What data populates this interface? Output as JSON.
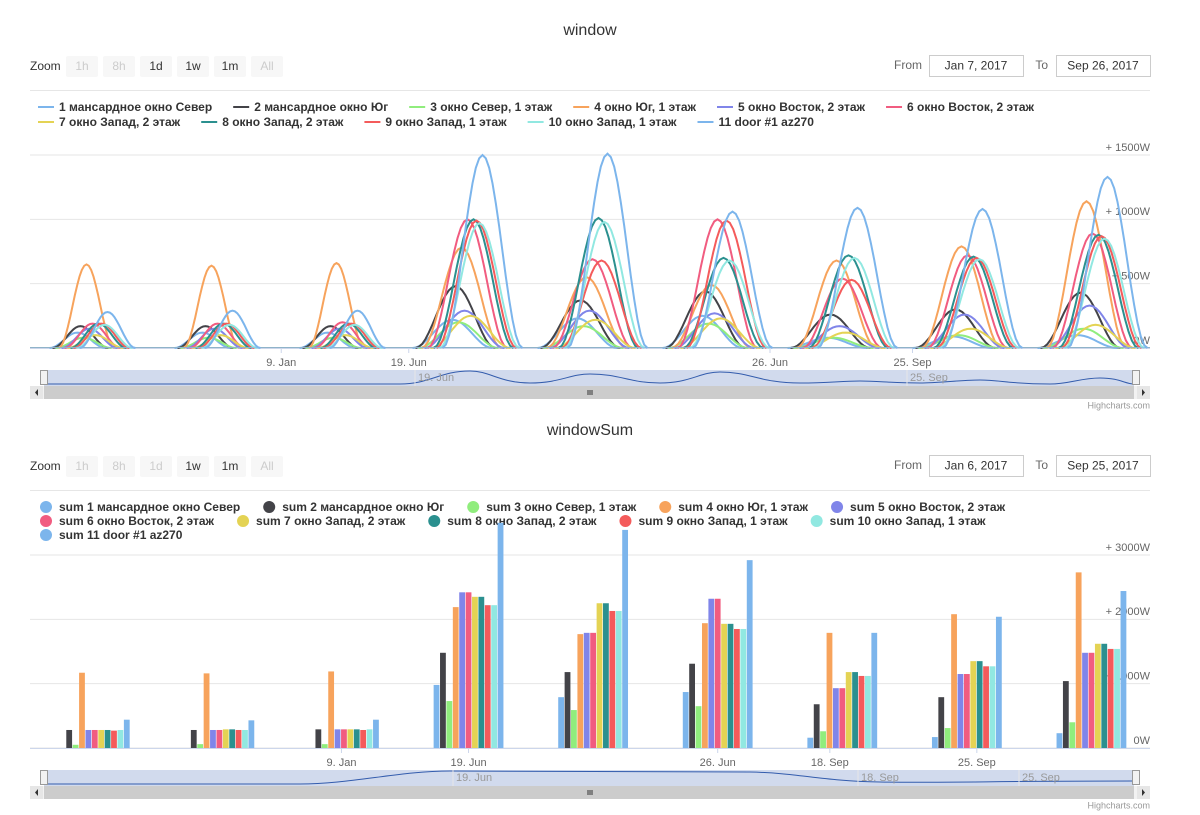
{
  "chart_data": [
    {
      "type": "line",
      "title": "window",
      "zoom_label": "Zoom",
      "range_buttons": [
        {
          "label": "1h",
          "enabled": false
        },
        {
          "label": "8h",
          "enabled": false
        },
        {
          "label": "1d",
          "enabled": true
        },
        {
          "label": "1w",
          "enabled": true
        },
        {
          "label": "1m",
          "enabled": true
        },
        {
          "label": "All",
          "enabled": false
        }
      ],
      "from_label": "From",
      "from": "Jan 7, 2017",
      "to_label": "To",
      "to": "Sep 26, 2017",
      "x": [
        0,
        1,
        2,
        3,
        4,
        5,
        6,
        7,
        8
      ],
      "xlim": [
        -0.5,
        8.46
      ],
      "xticks": [
        {
          "value": 1.51,
          "label": "9. Jan"
        },
        {
          "value": 2.53,
          "label": "19. Jun"
        },
        {
          "value": 5.42,
          "label": "26. Jun"
        },
        {
          "value": 6.56,
          "label": "25. Sep"
        }
      ],
      "ylim": [
        0,
        1500
      ],
      "yticks": [
        {
          "value": 0,
          "label": "0W"
        },
        {
          "value": 500,
          "label": "+ 500W"
        },
        {
          "value": 1000,
          "label": "+ 1000W"
        },
        {
          "value": 1500,
          "label": "+ 1500W"
        }
      ],
      "grid": true,
      "series": [
        {
          "name": "1 мансардное окно Север",
          "color": "#7cb5ec",
          "values": [
            120,
            120,
            120,
            220,
            230,
            250,
            80,
            90,
            100
          ]
        },
        {
          "name": "2 мансардное окно Юг",
          "color": "#434348",
          "values": [
            170,
            170,
            170,
            480,
            370,
            440,
            260,
            300,
            430
          ]
        },
        {
          "name": "3 окно Север, 1 этаж",
          "color": "#90ed7d",
          "values": [
            80,
            80,
            80,
            200,
            170,
            190,
            80,
            100,
            150
          ]
        },
        {
          "name": "4 окно Юг, 1 этаж",
          "color": "#f7a35c",
          "values": [
            650,
            640,
            660,
            780,
            550,
            490,
            680,
            790,
            1140
          ]
        },
        {
          "name": "5 окно Восток, 2 этаж",
          "color": "#8085e9",
          "values": [
            150,
            150,
            150,
            290,
            290,
            270,
            170,
            260,
            330
          ]
        },
        {
          "name": "6 окно Восток, 2 этаж",
          "color": "#f15c80",
          "values": [
            190,
            190,
            200,
            1000,
            690,
            1000,
            540,
            720,
            890
          ]
        },
        {
          "name": "7 окно Запад, 2 этаж",
          "color": "#e4d354",
          "values": [
            100,
            100,
            100,
            250,
            220,
            230,
            120,
            150,
            180
          ]
        },
        {
          "name": "8 окно Запад, 2 этаж",
          "color": "#2b908f",
          "values": [
            190,
            190,
            190,
            1000,
            1010,
            700,
            720,
            710,
            880
          ]
        },
        {
          "name": "9 окно Запад, 1 этаж",
          "color": "#f45b5b",
          "values": [
            190,
            190,
            190,
            990,
            680,
            990,
            530,
            700,
            870
          ]
        },
        {
          "name": "10 окно Запад, 1 этаж",
          "color": "#91e8e1",
          "values": [
            180,
            180,
            180,
            970,
            980,
            680,
            700,
            690,
            850
          ]
        },
        {
          "name": "11 door #1 az270",
          "color": "#7cb5ec",
          "values": [
            280,
            290,
            290,
            1500,
            1510,
            1060,
            1090,
            1080,
            1330
          ]
        }
      ],
      "navigator_labels": [
        "19. Jun",
        "25. Sep"
      ],
      "credits": "Highcharts.com"
    },
    {
      "type": "bar",
      "title": "windowSum",
      "zoom_label": "Zoom",
      "range_buttons": [
        {
          "label": "1h",
          "enabled": false
        },
        {
          "label": "8h",
          "enabled": false
        },
        {
          "label": "1d",
          "enabled": false
        },
        {
          "label": "1w",
          "enabled": true
        },
        {
          "label": "1m",
          "enabled": true
        },
        {
          "label": "All",
          "enabled": false
        }
      ],
      "from_label": "From",
      "from": "Jan 6, 2017",
      "to_label": "To",
      "to": "Sep 25, 2017",
      "x": [
        0,
        1,
        2,
        3,
        4,
        5,
        6,
        7,
        8
      ],
      "xlim": [
        -0.52,
        8.47
      ],
      "xticks": [
        {
          "value": 1.98,
          "label": "9. Jan"
        },
        {
          "value": 3.0,
          "label": "19. Jun"
        },
        {
          "value": 5.0,
          "label": "26. Jun"
        },
        {
          "value": 5.9,
          "label": "18. Sep"
        },
        {
          "value": 7.08,
          "label": "25. Sep"
        }
      ],
      "ylim": [
        0,
        3000
      ],
      "yticks": [
        {
          "value": 0,
          "label": "0W"
        },
        {
          "value": 1000,
          "label": "+ 1000W"
        },
        {
          "value": 2000,
          "label": "+ 2000W"
        },
        {
          "value": 3000,
          "label": "+ 3000W"
        }
      ],
      "grid": true,
      "series": [
        {
          "name": "sum 1 мансардное окно Север",
          "color": "#7cb5ec",
          "values": [
            0,
            0,
            0,
            980,
            790,
            870,
            160,
            170,
            230
          ]
        },
        {
          "name": "sum 2 мансардное окно Юг",
          "color": "#434348",
          "values": [
            280,
            280,
            290,
            1480,
            1180,
            1310,
            680,
            790,
            1040
          ]
        },
        {
          "name": "sum 3 окно Север, 1 этаж",
          "color": "#90ed7d",
          "values": [
            50,
            60,
            60,
            730,
            590,
            650,
            260,
            310,
            400
          ]
        },
        {
          "name": "sum 4 окно Юг, 1 этаж",
          "color": "#f7a35c",
          "values": [
            1170,
            1160,
            1190,
            2190,
            1770,
            1940,
            1790,
            2080,
            2730
          ]
        },
        {
          "name": "sum 5 окно Восток, 2 этаж",
          "color": "#8085e9",
          "values": [
            280,
            280,
            290,
            2420,
            1790,
            2320,
            930,
            1150,
            1480
          ]
        },
        {
          "name": "sum 6 окно Восток, 2 этаж",
          "color": "#f15c80",
          "values": [
            280,
            280,
            290,
            2420,
            1790,
            2320,
            930,
            1150,
            1480
          ]
        },
        {
          "name": "sum 7 окно Запад, 2 этаж",
          "color": "#e4d354",
          "values": [
            280,
            290,
            290,
            2350,
            2250,
            1930,
            1180,
            1350,
            1620
          ]
        },
        {
          "name": "sum 8 окно Запад, 2 этаж",
          "color": "#2b908f",
          "values": [
            280,
            290,
            290,
            2350,
            2250,
            1930,
            1180,
            1350,
            1620
          ]
        },
        {
          "name": "sum 9 окно Запад, 1 этаж",
          "color": "#f45b5b",
          "values": [
            270,
            280,
            280,
            2220,
            2130,
            1850,
            1120,
            1270,
            1540
          ]
        },
        {
          "name": "sum 10 окно Запад, 1 этаж",
          "color": "#91e8e1",
          "values": [
            280,
            280,
            290,
            2220,
            2130,
            1850,
            1120,
            1270,
            1540
          ]
        },
        {
          "name": "sum 11 door #1 az270",
          "color": "#7cb5ec",
          "values": [
            440,
            430,
            440,
            3500,
            3390,
            2920,
            1790,
            2040,
            2440
          ]
        }
      ],
      "navigator_labels": [
        "19. Jun",
        "18. Sep",
        "25. Sep"
      ],
      "credits": "Highcharts.com"
    }
  ]
}
